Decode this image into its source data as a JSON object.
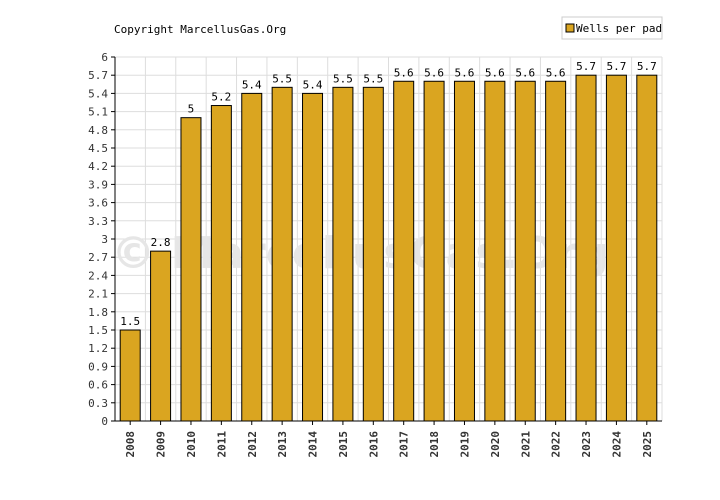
{
  "copyright": "Copyright MarcellusGas.Org",
  "watermark": "© MarcellusGas.Org",
  "colors": {
    "bar": "#DAA520",
    "bar_stroke": "#000000",
    "grid": "#dddddd",
    "axis": "#000000"
  },
  "chart_data": {
    "type": "bar",
    "categories": [
      "2008",
      "2009",
      "2010",
      "2011",
      "2012",
      "2013",
      "2014",
      "2015",
      "2016",
      "2017",
      "2018",
      "2019",
      "2020",
      "2021",
      "2022",
      "2023",
      "2024",
      "2025"
    ],
    "series": [
      {
        "name": "Wells per pad",
        "values": [
          1.5,
          2.8,
          5,
          5.2,
          5.4,
          5.5,
          5.4,
          5.5,
          5.5,
          5.6,
          5.6,
          5.6,
          5.6,
          5.6,
          5.6,
          5.7,
          5.7,
          5.7
        ]
      }
    ],
    "data_labels": [
      "1.5",
      "2.8",
      "5",
      "5.2",
      "5.4",
      "5.5",
      "5.4",
      "5.5",
      "5.5",
      "5.6",
      "5.6",
      "5.6",
      "5.6",
      "5.6",
      "5.6",
      "5.7",
      "5.7",
      "5.7"
    ],
    "yticks": [
      "0",
      "0.3",
      "0.6",
      "0.9",
      "1.2",
      "1.5",
      "1.8",
      "2.1",
      "2.4",
      "2.7",
      "3",
      "3.3",
      "3.6",
      "3.9",
      "4.2",
      "4.5",
      "4.8",
      "5.1",
      "5.4",
      "5.7",
      "6"
    ],
    "ylim": [
      0,
      6
    ],
    "grid": true,
    "legend_position": "top-right",
    "title": "",
    "xlabel": "",
    "ylabel": ""
  }
}
